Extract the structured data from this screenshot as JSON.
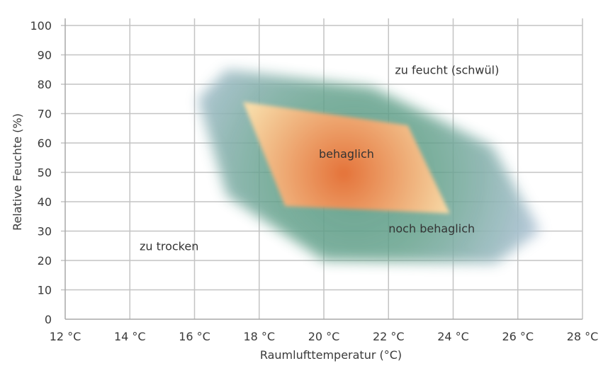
{
  "chart_data": {
    "type": "area",
    "xlabel": "Raumlufttemperatur (°C)",
    "ylabel": "Relative Feuchte (%)",
    "xlim": [
      12,
      28
    ],
    "ylim": [
      0,
      100
    ],
    "x_ticks": [
      12,
      14,
      16,
      18,
      20,
      22,
      24,
      26,
      28
    ],
    "x_tick_labels": [
      "12 °C",
      "14 °C",
      "16 °C",
      "18 °C",
      "20 °C",
      "22 °C",
      "24 °C",
      "26 °C",
      "28 °C"
    ],
    "y_ticks": [
      0,
      10,
      20,
      30,
      40,
      50,
      60,
      70,
      80,
      90,
      100
    ],
    "y_tick_labels": [
      "0",
      "10",
      "20",
      "30",
      "40",
      "50",
      "60",
      "70",
      "80",
      "90",
      "100"
    ],
    "grid": true,
    "regions": [
      {
        "name": "noch behaglich",
        "label_pos": [
          22,
          29.5
        ],
        "colors": [
          "#5f9e88",
          "#b4c6d9"
        ],
        "polygon": [
          [
            16.1,
            75
          ],
          [
            17,
            85
          ],
          [
            21.5,
            79
          ],
          [
            25.2,
            59
          ],
          [
            26.7,
            30
          ],
          [
            25.3,
            19
          ],
          [
            20,
            20
          ],
          [
            17,
            42
          ]
        ]
      },
      {
        "name": "behaglich",
        "label_pos": [
          20.7,
          55
        ],
        "colors": [
          "#e4733a",
          "#f7dba8"
        ],
        "polygon": [
          [
            17.5,
            74
          ],
          [
            22.6,
            66
          ],
          [
            23.9,
            36
          ],
          [
            18.8,
            38.5
          ]
        ]
      }
    ],
    "annotations": [
      {
        "text": "zu feucht (schwül)",
        "x": 22.2,
        "y": 83.5
      },
      {
        "text": "zu trocken",
        "x": 14.3,
        "y": 23.5
      }
    ]
  }
}
